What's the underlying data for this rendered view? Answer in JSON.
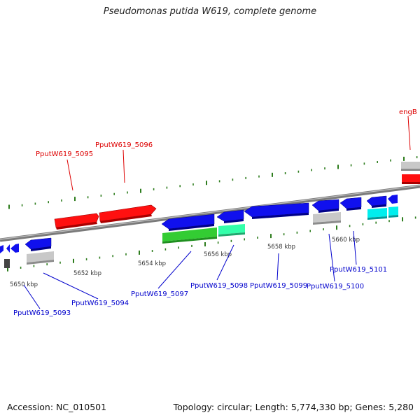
{
  "title": "Pseudomonas putida W619, complete genome",
  "accession": "Accession: NC_010501",
  "summary": "Topology: circular; Length: 5,774,330 bp; Genes: 5,280",
  "colors": {
    "backbone": "#8a8a8a",
    "forward_label": "#dd0000",
    "reverse_label": "#0000cc",
    "tick": "#2e7d1e",
    "gene_red": "#ff0000",
    "gene_blue": "#0000ee",
    "gene_green": "#33cc33",
    "gene_aqua": "#33ffaa",
    "gene_cyan": "#00eeee",
    "gene_grey": "#bbbbbb",
    "gene_dark": "#444444"
  },
  "scale_labels": [
    "5650 kbp",
    "5652 kbp",
    "5654 kbp",
    "5656 kbp",
    "5658 kbp",
    "5660 kbp"
  ],
  "gene_labels": {
    "forward": [
      "engB",
      "PputW619_5095",
      "PputW619_5096"
    ],
    "reverse": [
      "PputW619_5093",
      "PputW619_5094",
      "PputW619_5097",
      "PputW619_5098",
      "PputW619_5099",
      "PputW619_5100",
      "PputW619_5101"
    ]
  }
}
